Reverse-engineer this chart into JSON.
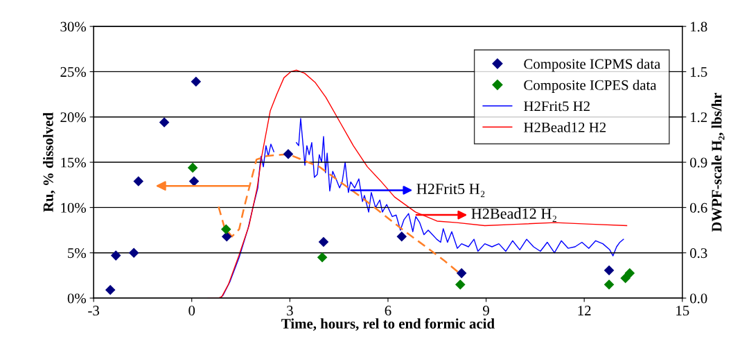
{
  "chart_data": {
    "type": "scatter",
    "xlabel": "Time, hours, rel to end formic acid",
    "ylabel": "Ru, % dissolved",
    "y2label": "DWPF-scale H₂, lbs/hr",
    "xlim": [
      -3,
      15
    ],
    "xticks": [
      -3,
      0,
      3,
      6,
      9,
      12,
      15
    ],
    "ylim": [
      0,
      30
    ],
    "yticks": [
      {
        "value": 0,
        "label": "0%"
      },
      {
        "value": 5,
        "label": "5%"
      },
      {
        "value": 10,
        "label": "10%"
      },
      {
        "value": 15,
        "label": "15%"
      },
      {
        "value": 20,
        "label": "20%"
      },
      {
        "value": 25,
        "label": "25%"
      },
      {
        "value": 30,
        "label": "30%"
      }
    ],
    "y2lim": [
      0,
      1.8
    ],
    "y2ticks": [
      {
        "value": 0,
        "label": "0.0"
      },
      0.3,
      0.6,
      0.9,
      1.2,
      1.5,
      1.8
    ],
    "grid": "y",
    "legend": "top right",
    "annotations": [
      "H2Frit5 H₂",
      "H2Bead12 H₂"
    ],
    "series": [
      {
        "name": "Composite ICPMS data",
        "marker": "diamond",
        "color": "#000080",
        "x": [
          -2.49,
          -2.32,
          -1.77,
          -1.63,
          -0.84,
          0.13,
          0.07,
          1.07,
          2.95,
          4.03,
          6.42,
          8.25,
          12.76
        ],
        "values": [
          0.9,
          4.7,
          5.0,
          12.9,
          19.4,
          23.9,
          12.9,
          6.8,
          15.9,
          6.2,
          6.8,
          2.75,
          3.06
        ]
      },
      {
        "name": "Composite ICPES data",
        "marker": "diamond",
        "color": "#008000",
        "x": [
          0.03,
          1.05,
          3.99,
          8.21,
          12.76,
          13.26,
          13.39
        ],
        "values": [
          14.4,
          7.6,
          4.5,
          1.5,
          1.5,
          2.2,
          2.75
        ]
      },
      {
        "name": "H2Frit5 H2",
        "type": "line",
        "axis": "y2",
        "marker": "none",
        "color": "#0000ff",
        "x": [
          0.49,
          0.87,
          0.96,
          1.17,
          1.45,
          1.72,
          1.87,
          2.02,
          2.08,
          2.12,
          2.19,
          2.27,
          2.34,
          2.42,
          2.51,
          2.9,
          3.2,
          3.27,
          3.33,
          3.46,
          3.52,
          3.59,
          3.67,
          3.75,
          3.84,
          3.9,
          3.97,
          4.03,
          4.09,
          4.14,
          4.22,
          4.31,
          4.43,
          4.52,
          4.6,
          4.69,
          4.79,
          4.86,
          4.98,
          5.11,
          5.22,
          5.28,
          5.41,
          5.49,
          5.62,
          5.75,
          5.83,
          5.96,
          6.13,
          6.25,
          6.38,
          6.49,
          6.63,
          6.76,
          6.85,
          6.97,
          7.1,
          7.23,
          7.36,
          7.49,
          7.61,
          7.69,
          7.82,
          7.95,
          8.12,
          8.25,
          8.46,
          8.63,
          8.75,
          8.96,
          9.18,
          9.39,
          9.6,
          9.81,
          10.03,
          10.24,
          10.45,
          10.66,
          10.87,
          11.09,
          11.3,
          11.51,
          11.72,
          11.93,
          12.14,
          12.35,
          12.57,
          12.78,
          12.88,
          12.99,
          13.09,
          13.2
        ],
        "values": [
          0,
          0,
          0.02,
          0.11,
          0.27,
          0.46,
          0.6,
          0.73,
          0.87,
          0.94,
          0.87,
          1.01,
          0.94,
          1.02,
          0.97,
          null,
          1.03,
          1.01,
          1.19,
          0.88,
          1.01,
          0.95,
          1.03,
          0.8,
          0.82,
          0.95,
          0.9,
          1.07,
          0.83,
          0.96,
          0.71,
          0.84,
          0.78,
          0.73,
          0.77,
          0.9,
          0.7,
          0.77,
          0.73,
          0.79,
          0.64,
          0.68,
          0.57,
          0.7,
          0.6,
          0.65,
          0.57,
          0.62,
          0.54,
          0.55,
          0.45,
          0.52,
          0.56,
          0.44,
          0.54,
          0.5,
          0.42,
          0.45,
          0.42,
          0.39,
          0.37,
          0.46,
          0.37,
          0.44,
          0.33,
          0.36,
          0.34,
          0.39,
          0.31,
          0.36,
          0.34,
          0.36,
          0.31,
          0.38,
          0.32,
          0.39,
          0.34,
          0.31,
          0.37,
          0.3,
          0.38,
          0.33,
          0.34,
          0.37,
          0.33,
          0.38,
          0.36,
          0.32,
          0.28,
          0.34,
          0.37,
          0.39
        ]
      },
      {
        "name": "H2Bead12 H2",
        "type": "line",
        "axis": "y2",
        "marker": "none",
        "color": "#ff0000",
        "x": [
          0.5,
          0.81,
          0.92,
          1.12,
          1.44,
          1.75,
          2.0,
          2.14,
          2.4,
          2.6,
          2.82,
          3.03,
          3.2,
          3.45,
          3.77,
          4.1,
          4.52,
          4.94,
          5.37,
          5.8,
          6.2,
          6.84,
          7.5,
          8.1,
          8.96,
          10.0,
          11.1,
          12.2,
          13.3
        ],
        "values": [
          0,
          0,
          0.01,
          0.09,
          0.28,
          0.48,
          0.73,
          0.94,
          1.24,
          1.35,
          1.46,
          1.5,
          1.51,
          1.49,
          1.43,
          1.33,
          1.17,
          1.01,
          0.87,
          0.77,
          0.67,
          0.57,
          0.51,
          0.5,
          0.48,
          0.49,
          0.5,
          0.49,
          0.48
        ]
      },
      {
        "type": "line",
        "line_style": "dashed",
        "marker": "none",
        "color": "#ff7f27",
        "x": [
          0.82,
          1.0,
          1.23,
          1.45,
          1.6,
          1.98,
          2.3,
          2.95,
          3.9,
          5.2,
          6.4,
          7.7,
          8.2
        ],
        "values": [
          10.1,
          7.8,
          6.8,
          7.6,
          10.0,
          15.3,
          15.7,
          15.9,
          14.5,
          11.1,
          7.7,
          4.2,
          2.7
        ]
      }
    ]
  }
}
